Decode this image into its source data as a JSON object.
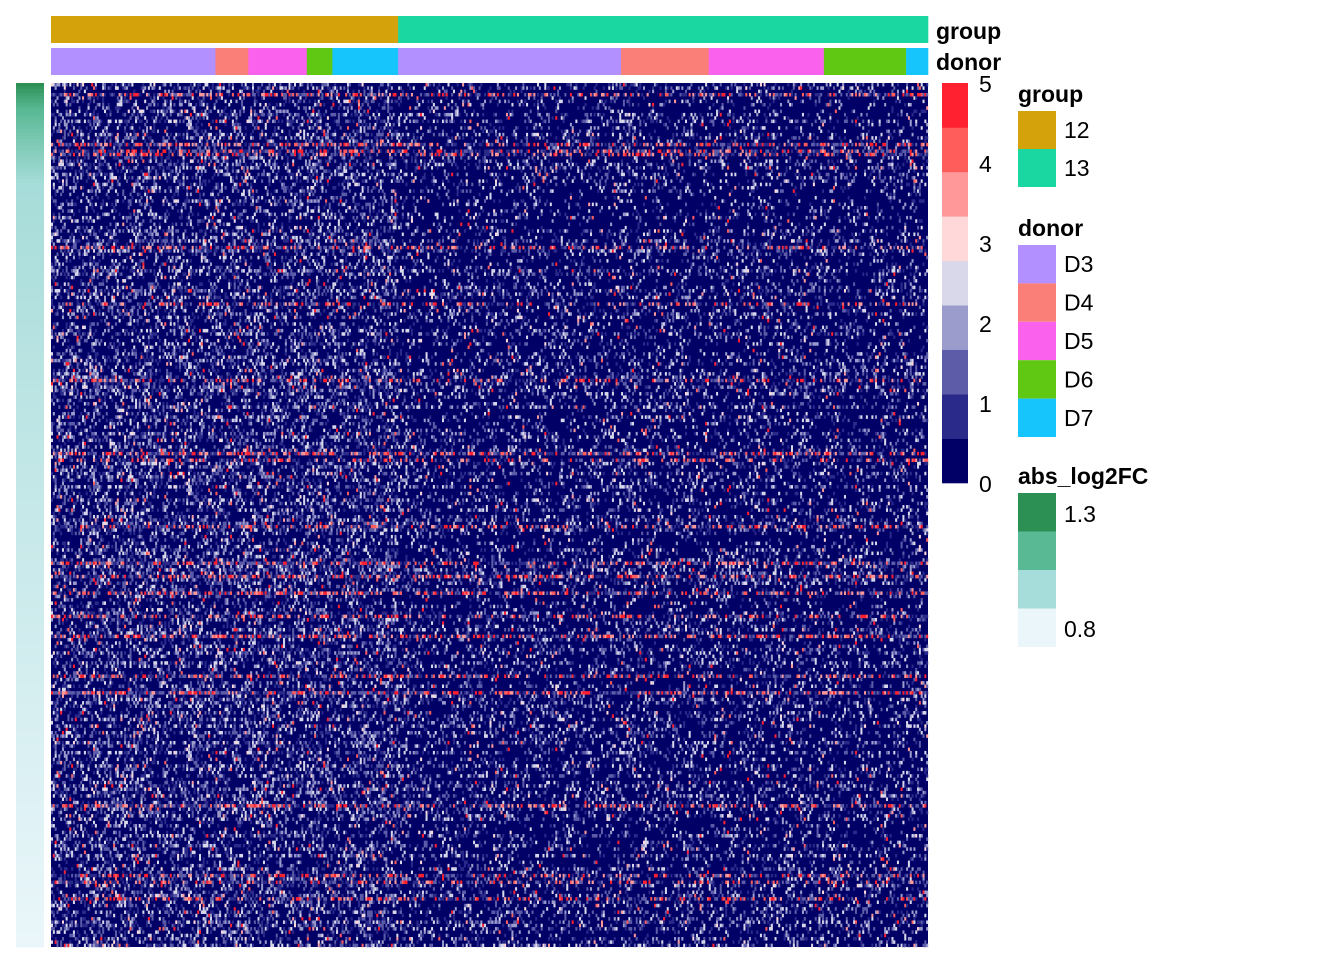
{
  "chart_data": {
    "type": "heatmap",
    "title": "",
    "value_range": [
      0,
      5
    ],
    "color_scale": {
      "ticks": [
        "0",
        "1",
        "2",
        "3",
        "4",
        "5"
      ],
      "colors": [
        "#000066",
        "#2a2a8a",
        "#5c5ca8",
        "#9b9bcc",
        "#d8d8ea",
        "#ffd9d9",
        "#ff9999",
        "#ff5c5c",
        "#ff2030"
      ]
    },
    "group_annotation": {
      "label": "group",
      "segments": [
        {
          "level": "12",
          "color": "#D4A20A",
          "cells": 190
        },
        {
          "level": "13",
          "color": "#1AD6A0",
          "cells": 290
        }
      ]
    },
    "donor_annotation": {
      "label": "donor",
      "segments": [
        {
          "level": "D3",
          "color": "#B290FF",
          "cells": 90
        },
        {
          "level": "D4",
          "color": "#FA7F78",
          "cells": 18
        },
        {
          "level": "D5",
          "color": "#FA62EE",
          "cells": 32
        },
        {
          "level": "D6",
          "color": "#60C813",
          "cells": 14
        },
        {
          "level": "D7",
          "color": "#17C5FD",
          "cells": 36
        },
        {
          "level": "D3",
          "color": "#B290FF",
          "cells": 122
        },
        {
          "level": "D4",
          "color": "#FA7F78",
          "cells": 48
        },
        {
          "level": "D5",
          "color": "#FA62EE",
          "cells": 63
        },
        {
          "level": "D6",
          "color": "#60C813",
          "cells": 45
        },
        {
          "level": "D7",
          "color": "#17C5FD",
          "cells": 12
        }
      ]
    },
    "row_annotation": {
      "label": "abs_log2FC",
      "range": [
        0.8,
        1.3
      ],
      "colors": [
        "#EAF6FA",
        "#A6DCD9",
        "#58B994",
        "#2C8F54"
      ]
    },
    "legends": {
      "group": {
        "title": "group",
        "items": [
          {
            "label": "12",
            "color": "#D4A20A"
          },
          {
            "label": "13",
            "color": "#1AD6A0"
          }
        ]
      },
      "donor": {
        "title": "donor",
        "items": [
          {
            "label": "D3",
            "color": "#B290FF"
          },
          {
            "label": "D4",
            "color": "#FA7F78"
          },
          {
            "label": "D5",
            "color": "#FA62EE"
          },
          {
            "label": "D6",
            "color": "#60C813"
          },
          {
            "label": "D7",
            "color": "#17C5FD"
          }
        ]
      },
      "abs_log2FC": {
        "title": "abs_log2FC",
        "tick_high": "1.3",
        "tick_low": "0.8",
        "colors": [
          "#2C8F54",
          "#58B994",
          "#A6DCD9",
          "#EAF6FA"
        ]
      }
    },
    "n_genes": 260,
    "n_cells": 480
  }
}
